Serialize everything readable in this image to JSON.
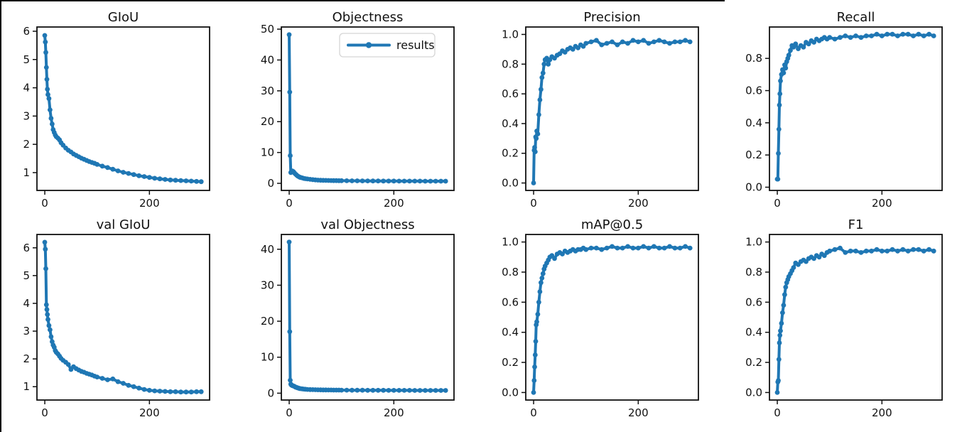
{
  "figure": {
    "background": "#ffffff",
    "screenshot_border": {
      "color": "#000000",
      "sides_visible": [
        "left",
        "top"
      ]
    }
  },
  "style": {
    "line_color": "#1f77b4",
    "marker": "circle-icon",
    "axis_color": "#111111",
    "text_color": "#111111",
    "legend_border_color": "#d5d5d5",
    "legend_background": "#ffffff"
  },
  "legend": {
    "label": "results",
    "panel": "Objectness",
    "position": "upper-right"
  },
  "chart_data": {
    "type": "line",
    "series_name": "results",
    "grid": false,
    "x_axis": {
      "ticks": [
        0,
        200
      ],
      "tick_labels": [
        "0",
        "200"
      ],
      "xlim": [
        -15,
        315
      ]
    },
    "epochs": [
      0,
      1,
      2,
      3,
      4,
      5,
      6,
      8,
      10,
      12,
      14,
      16,
      18,
      20,
      22,
      25,
      28,
      31,
      35,
      40,
      45,
      50,
      55,
      60,
      65,
      70,
      75,
      80,
      85,
      90,
      95,
      100,
      110,
      120,
      130,
      140,
      150,
      160,
      170,
      180,
      190,
      200,
      210,
      220,
      230,
      240,
      250,
      260,
      270,
      280,
      290,
      299
    ],
    "panels": [
      {
        "title": "GIoU",
        "row": 0,
        "col": 0,
        "legend": false,
        "ylim": [
          0.37,
          6.15
        ],
        "ytick_values": [
          1,
          2,
          3,
          4,
          5,
          6
        ],
        "ytick_labels": [
          "1",
          "2",
          "3",
          "4",
          "5",
          "6"
        ],
        "values": [
          5.85,
          5.62,
          5.25,
          4.72,
          4.3,
          3.95,
          3.76,
          3.62,
          3.22,
          2.92,
          2.72,
          2.52,
          2.42,
          2.33,
          2.27,
          2.22,
          2.16,
          2.06,
          1.97,
          1.87,
          1.79,
          1.73,
          1.66,
          1.61,
          1.56,
          1.51,
          1.47,
          1.43,
          1.39,
          1.36,
          1.33,
          1.29,
          1.23,
          1.18,
          1.12,
          1.06,
          1.01,
          0.97,
          0.93,
          0.89,
          0.86,
          0.83,
          0.8,
          0.78,
          0.76,
          0.74,
          0.73,
          0.72,
          0.71,
          0.7,
          0.69,
          0.68
        ]
      },
      {
        "title": "Objectness",
        "row": 0,
        "col": 1,
        "legend": true,
        "ylim": [
          -2.3,
          50.7
        ],
        "ytick_values": [
          0,
          10,
          20,
          30,
          40,
          50
        ],
        "ytick_labels": [
          "0",
          "10",
          "20",
          "30",
          "40",
          "50"
        ],
        "values": [
          48.2,
          29.6,
          9.0,
          3.5,
          3.7,
          3.9,
          4.0,
          3.8,
          3.4,
          3.0,
          2.7,
          2.4,
          2.2,
          2.0,
          1.9,
          1.75,
          1.6,
          1.5,
          1.4,
          1.3,
          1.2,
          1.12,
          1.05,
          1.0,
          0.97,
          0.94,
          0.92,
          0.9,
          0.88,
          0.87,
          0.86,
          0.85,
          0.83,
          0.81,
          0.8,
          0.79,
          0.78,
          0.77,
          0.76,
          0.75,
          0.74,
          0.74,
          0.73,
          0.72,
          0.72,
          0.71,
          0.71,
          0.7,
          0.7,
          0.7,
          0.69,
          0.69
        ]
      },
      {
        "title": "Precision",
        "row": 0,
        "col": 2,
        "legend": false,
        "ylim": [
          -0.05,
          1.05
        ],
        "ytick_values": [
          0,
          0.2,
          0.4,
          0.6,
          0.8,
          1.0
        ],
        "ytick_labels": [
          "0.0",
          "0.2",
          "0.4",
          "0.6",
          "0.8",
          "1.0"
        ],
        "values": [
          0.0,
          0.22,
          0.24,
          0.21,
          0.31,
          0.3,
          0.35,
          0.33,
          0.46,
          0.56,
          0.63,
          0.71,
          0.74,
          0.8,
          0.83,
          0.84,
          0.8,
          0.83,
          0.85,
          0.84,
          0.86,
          0.87,
          0.89,
          0.88,
          0.9,
          0.91,
          0.9,
          0.92,
          0.91,
          0.93,
          0.92,
          0.94,
          0.95,
          0.96,
          0.93,
          0.94,
          0.95,
          0.93,
          0.95,
          0.94,
          0.96,
          0.95,
          0.96,
          0.94,
          0.95,
          0.96,
          0.95,
          0.94,
          0.95,
          0.95,
          0.96,
          0.95
        ]
      },
      {
        "title": "Recall",
        "row": 0,
        "col": 3,
        "legend": false,
        "ylim": [
          -0.02,
          0.995
        ],
        "ytick_values": [
          0,
          0.2,
          0.4,
          0.6,
          0.8
        ],
        "ytick_labels": [
          "0.0",
          "0.2",
          "0.4",
          "0.6",
          "0.8"
        ],
        "values": [
          0.05,
          0.05,
          0.21,
          0.36,
          0.51,
          0.58,
          0.66,
          0.7,
          0.73,
          0.71,
          0.76,
          0.74,
          0.78,
          0.8,
          0.82,
          0.85,
          0.88,
          0.87,
          0.89,
          0.86,
          0.88,
          0.87,
          0.9,
          0.89,
          0.91,
          0.9,
          0.92,
          0.91,
          0.92,
          0.93,
          0.92,
          0.93,
          0.92,
          0.93,
          0.94,
          0.93,
          0.94,
          0.93,
          0.94,
          0.94,
          0.95,
          0.94,
          0.95,
          0.95,
          0.94,
          0.95,
          0.95,
          0.94,
          0.95,
          0.94,
          0.95,
          0.94
        ]
      },
      {
        "title": "val GIoU",
        "row": 1,
        "col": 0,
        "legend": false,
        "ylim": [
          0.52,
          6.48
        ],
        "ytick_values": [
          1,
          2,
          3,
          4,
          5,
          6
        ],
        "ytick_labels": [
          "1",
          "2",
          "3",
          "4",
          "5",
          "6"
        ],
        "values": [
          6.2,
          5.95,
          5.25,
          3.95,
          3.78,
          3.6,
          3.42,
          3.2,
          3.05,
          2.8,
          2.62,
          2.5,
          2.42,
          2.3,
          2.24,
          2.18,
          2.1,
          2.02,
          1.95,
          1.88,
          1.8,
          1.62,
          1.72,
          1.65,
          1.6,
          1.55,
          1.52,
          1.48,
          1.45,
          1.42,
          1.38,
          1.35,
          1.3,
          1.25,
          1.28,
          1.18,
          1.12,
          1.05,
          1.0,
          0.95,
          0.9,
          0.87,
          0.85,
          0.84,
          0.83,
          0.82,
          0.82,
          0.81,
          0.81,
          0.81,
          0.82,
          0.82
        ]
      },
      {
        "title": "val Objectness",
        "row": 1,
        "col": 1,
        "legend": false,
        "ylim": [
          -1.9,
          44.1
        ],
        "ytick_values": [
          0,
          10,
          20,
          30,
          40
        ],
        "ytick_labels": [
          "0",
          "10",
          "20",
          "30",
          "40"
        ],
        "values": [
          42.0,
          17.1,
          3.6,
          2.5,
          2.3,
          2.2,
          2.1,
          2.0,
          1.9,
          1.7,
          1.6,
          1.5,
          1.4,
          1.3,
          1.25,
          1.2,
          1.15,
          1.1,
          1.05,
          1.0,
          0.98,
          0.96,
          0.94,
          0.92,
          0.91,
          0.9,
          0.89,
          0.88,
          0.87,
          0.86,
          0.86,
          0.85,
          0.84,
          0.83,
          0.82,
          0.82,
          0.81,
          0.81,
          0.8,
          0.8,
          0.79,
          0.79,
          0.78,
          0.78,
          0.78,
          0.77,
          0.77,
          0.77,
          0.76,
          0.76,
          0.76,
          0.76
        ]
      },
      {
        "title": "mAP@0.5",
        "row": 1,
        "col": 2,
        "legend": false,
        "ylim": [
          -0.05,
          1.05
        ],
        "ytick_values": [
          0,
          0.2,
          0.4,
          0.6,
          0.8,
          1.0
        ],
        "ytick_labels": [
          "0.0",
          "0.2",
          "0.4",
          "0.6",
          "0.8",
          "1.0"
        ],
        "values": [
          0.0,
          0.08,
          0.17,
          0.25,
          0.34,
          0.45,
          0.47,
          0.52,
          0.6,
          0.67,
          0.73,
          0.76,
          0.79,
          0.82,
          0.84,
          0.86,
          0.88,
          0.9,
          0.91,
          0.89,
          0.92,
          0.93,
          0.92,
          0.94,
          0.93,
          0.94,
          0.95,
          0.94,
          0.95,
          0.95,
          0.96,
          0.95,
          0.96,
          0.96,
          0.95,
          0.96,
          0.97,
          0.96,
          0.96,
          0.97,
          0.96,
          0.96,
          0.97,
          0.96,
          0.97,
          0.96,
          0.96,
          0.97,
          0.96,
          0.96,
          0.97,
          0.96
        ]
      },
      {
        "title": "F1",
        "row": 1,
        "col": 3,
        "legend": false,
        "ylim": [
          -0.05,
          1.05
        ],
        "ytick_values": [
          0,
          0.2,
          0.4,
          0.6,
          0.8,
          1.0
        ],
        "ytick_labels": [
          "0.0",
          "0.2",
          "0.4",
          "0.6",
          "0.8",
          "1.0"
        ],
        "values": [
          0.0,
          0.07,
          0.08,
          0.22,
          0.33,
          0.38,
          0.41,
          0.46,
          0.53,
          0.58,
          0.65,
          0.7,
          0.73,
          0.75,
          0.77,
          0.79,
          0.81,
          0.83,
          0.86,
          0.85,
          0.87,
          0.88,
          0.87,
          0.89,
          0.9,
          0.89,
          0.91,
          0.9,
          0.92,
          0.91,
          0.93,
          0.94,
          0.95,
          0.96,
          0.93,
          0.94,
          0.94,
          0.93,
          0.94,
          0.94,
          0.95,
          0.94,
          0.94,
          0.95,
          0.94,
          0.95,
          0.94,
          0.95,
          0.95,
          0.94,
          0.95,
          0.94
        ]
      }
    ]
  }
}
